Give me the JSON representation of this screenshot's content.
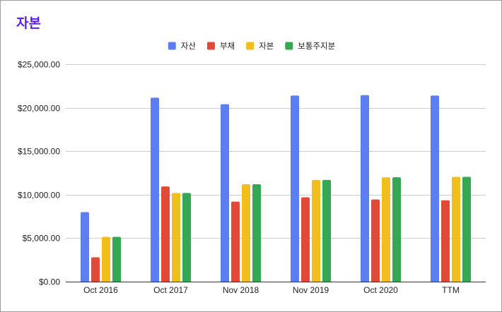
{
  "chart_data": {
    "type": "bar",
    "title": "자본",
    "xlabel": "",
    "ylabel": "",
    "categories": [
      "Oct 2016",
      "Oct 2017",
      "Nov 2018",
      "Nov 2019",
      "Oct 2020",
      "TTM"
    ],
    "series": [
      {
        "name": "자산",
        "color": "#5b7ff0",
        "values": [
          8000,
          21150,
          20400,
          21400,
          21450,
          21400
        ]
      },
      {
        "name": "부채",
        "color": "#e04a37",
        "values": [
          2800,
          10950,
          9200,
          9700,
          9450,
          9350
        ]
      },
      {
        "name": "자본",
        "color": "#f2be1c",
        "values": [
          5150,
          10200,
          11200,
          11700,
          12000,
          12050
        ]
      },
      {
        "name": "보통주지분",
        "color": "#34a853",
        "values": [
          5150,
          10200,
          11200,
          11700,
          12000,
          12050
        ]
      }
    ],
    "ylim": [
      0,
      25000
    ],
    "y_ticks": [
      0,
      5000,
      10000,
      15000,
      20000,
      25000
    ],
    "y_tick_labels": [
      "$0.00",
      "$5,000.00",
      "$10,000.00",
      "$15,000.00",
      "$20,000.00",
      "$25,000.00"
    ],
    "grid": true,
    "legend_position": "top-center"
  }
}
